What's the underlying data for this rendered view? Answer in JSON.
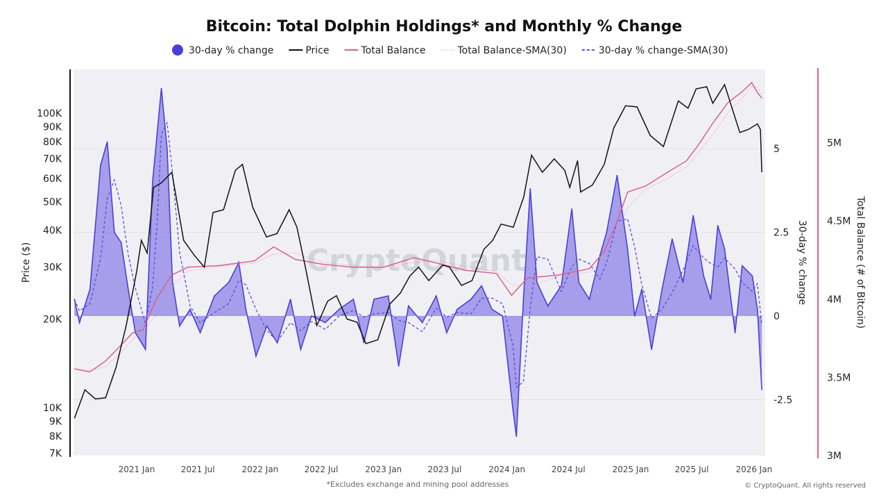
{
  "chart_data": {
    "type": "line",
    "title": "Bitcoin: Total Dolphin Holdings* and Monthly % Change",
    "footnote": "*Excludes exchange and mining pool addresses",
    "copyright": "© CryptoQuant. All rights reserved",
    "watermark": "CryptoQuant",
    "legend_position": "top-center",
    "legend": [
      {
        "label": "30-day % change",
        "color": "#4a3fd8",
        "style": "area"
      },
      {
        "label": "Price",
        "color": "#111111",
        "style": "solid"
      },
      {
        "label": "Total Balance",
        "color": "#d9608f",
        "style": "solid"
      },
      {
        "label": "Total Balance-SMA(30)",
        "color": "#e08aa8",
        "style": "dotted"
      },
      {
        "label": "30-day % change-SMA(30)",
        "color": "#5b4ce0",
        "style": "dashed"
      }
    ],
    "x_ticks": [
      "2021 Jan",
      "2021 Jul",
      "2022 Jan",
      "2022 Jul",
      "2023 Jan",
      "2023 Jul",
      "2024 Jan",
      "2024 Jul",
      "2025 Jan",
      "2025 Jul",
      "2026 Jan"
    ],
    "x_tick_dates": [
      "2021-01-01",
      "2021-07-01",
      "2022-01-01",
      "2022-07-01",
      "2023-01-01",
      "2023-07-01",
      "2024-01-01",
      "2024-07-01",
      "2025-01-01",
      "2025-07-01",
      "2026-01-01"
    ],
    "y_left": {
      "label": "Price ($)",
      "scale": "log",
      "range": [
        7000,
        180000
      ],
      "ticks": [
        {
          "v": 7000,
          "l": "7K"
        },
        {
          "v": 8000,
          "l": "8K"
        },
        {
          "v": 9000,
          "l": "9K"
        },
        {
          "v": 10000,
          "l": "10K"
        },
        {
          "v": 20000,
          "l": "20K"
        },
        {
          "v": 30000,
          "l": "30K"
        },
        {
          "v": 40000,
          "l": "40K"
        },
        {
          "v": 50000,
          "l": "50K"
        },
        {
          "v": 60000,
          "l": "60K"
        },
        {
          "v": 70000,
          "l": "70K"
        },
        {
          "v": 80000,
          "l": "80K"
        },
        {
          "v": 90000,
          "l": "90K"
        },
        {
          "v": 100000,
          "l": "100K"
        }
      ]
    },
    "y_right1": {
      "label": "30-day % change",
      "range": [
        -4.2,
        7.3
      ],
      "ticks": [
        {
          "v": -2.5,
          "l": "-2.5"
        },
        {
          "v": 0,
          "l": "0"
        },
        {
          "v": 2.5,
          "l": "2.5"
        },
        {
          "v": 5,
          "l": "5"
        }
      ]
    },
    "y_right2": {
      "label": "Total Balance (# of Bitcoin)",
      "range": [
        3000000,
        5450000
      ],
      "ticks": [
        {
          "v": 3000000,
          "l": "3M"
        },
        {
          "v": 3500000,
          "l": "3.5M"
        },
        {
          "v": 4000000,
          "l": "4M"
        },
        {
          "v": 4500000,
          "l": "4.5M"
        },
        {
          "v": 5000000,
          "l": "5M"
        }
      ]
    },
    "grid": true,
    "series": {
      "pct_change": [
        [
          "2020-07-01",
          0.5
        ],
        [
          "2020-07-16",
          -0.2
        ],
        [
          "2020-08-16",
          0.8
        ],
        [
          "2020-09-16",
          4.5
        ],
        [
          "2020-10-06",
          5.2
        ],
        [
          "2020-10-27",
          2.5
        ],
        [
          "2020-11-16",
          2.2
        ],
        [
          "2020-12-07",
          0.8
        ],
        [
          "2020-12-28",
          -0.5
        ],
        [
          "2021-01-27",
          -1.0
        ],
        [
          "2021-02-17",
          4.0
        ],
        [
          "2021-03-03",
          5.5
        ],
        [
          "2021-03-15",
          6.8
        ],
        [
          "2021-04-01",
          5.0
        ],
        [
          "2021-04-17",
          1.0
        ],
        [
          "2021-05-08",
          -0.3
        ],
        [
          "2021-06-08",
          0.2
        ],
        [
          "2021-07-08",
          -0.5
        ],
        [
          "2021-08-19",
          0.6
        ],
        [
          "2021-09-30",
          1.0
        ],
        [
          "2021-10-30",
          1.6
        ],
        [
          "2021-11-20",
          0.2
        ],
        [
          "2021-12-20",
          -1.2
        ],
        [
          "2022-01-21",
          -0.3
        ],
        [
          "2022-02-21",
          -0.8
        ],
        [
          "2022-04-01",
          0.5
        ],
        [
          "2022-05-01",
          -1.0
        ],
        [
          "2022-06-02",
          0.0
        ],
        [
          "2022-07-13",
          -0.2
        ],
        [
          "2022-08-23",
          0.2
        ],
        [
          "2022-10-04",
          0.5
        ],
        [
          "2022-11-04",
          -0.8
        ],
        [
          "2022-12-04",
          0.5
        ],
        [
          "2023-01-15",
          0.6
        ],
        [
          "2023-02-15",
          -1.5
        ],
        [
          "2023-03-16",
          0.3
        ],
        [
          "2023-04-26",
          -0.2
        ],
        [
          "2023-06-06",
          0.6
        ],
        [
          "2023-07-07",
          -0.5
        ],
        [
          "2023-08-07",
          0.2
        ],
        [
          "2023-09-17",
          0.5
        ],
        [
          "2023-10-18",
          0.9
        ],
        [
          "2023-11-18",
          0.2
        ],
        [
          "2023-12-19",
          0.0
        ],
        [
          "2024-01-19",
          -2.8
        ],
        [
          "2024-01-29",
          -3.6
        ],
        [
          "2024-02-19",
          0.5
        ],
        [
          "2024-03-10",
          3.8
        ],
        [
          "2024-03-30",
          1.0
        ],
        [
          "2024-05-01",
          0.3
        ],
        [
          "2024-06-10",
          0.9
        ],
        [
          "2024-07-11",
          3.2
        ],
        [
          "2024-08-01",
          1.0
        ],
        [
          "2024-09-01",
          0.5
        ],
        [
          "2024-10-02",
          1.8
        ],
        [
          "2024-10-22",
          2.5
        ],
        [
          "2024-11-22",
          4.2
        ],
        [
          "2024-12-23",
          2.0
        ],
        [
          "2025-01-13",
          0.0
        ],
        [
          "2025-02-03",
          0.8
        ],
        [
          "2025-03-04",
          -1.0
        ],
        [
          "2025-04-04",
          0.8
        ],
        [
          "2025-05-04",
          2.3
        ],
        [
          "2025-06-05",
          1.0
        ],
        [
          "2025-07-05",
          3.0
        ],
        [
          "2025-08-05",
          1.2
        ],
        [
          "2025-08-26",
          0.5
        ],
        [
          "2025-09-16",
          2.7
        ],
        [
          "2025-10-06",
          2.0
        ],
        [
          "2025-11-06",
          -0.5
        ],
        [
          "2025-11-27",
          1.5
        ],
        [
          "2025-12-27",
          1.2
        ],
        [
          "2026-01-11",
          0.2
        ],
        [
          "2026-01-24",
          -2.2
        ]
      ],
      "price": [
        [
          "2020-07-01",
          9200
        ],
        [
          "2020-08-01",
          11500
        ],
        [
          "2020-09-01",
          10700
        ],
        [
          "2020-10-01",
          10800
        ],
        [
          "2020-11-01",
          13700
        ],
        [
          "2020-12-01",
          19000
        ],
        [
          "2021-01-01",
          29000
        ],
        [
          "2021-01-15",
          37000
        ],
        [
          "2021-02-01",
          33500
        ],
        [
          "2021-02-20",
          56000
        ],
        [
          "2021-03-15",
          58000
        ],
        [
          "2021-04-15",
          63000
        ],
        [
          "2021-05-20",
          37000
        ],
        [
          "2021-06-20",
          33000
        ],
        [
          "2021-07-20",
          30000
        ],
        [
          "2021-08-15",
          46000
        ],
        [
          "2021-09-15",
          47000
        ],
        [
          "2021-10-20",
          64000
        ],
        [
          "2021-11-10",
          67000
        ],
        [
          "2021-12-10",
          48000
        ],
        [
          "2022-01-20",
          38000
        ],
        [
          "2022-02-20",
          39000
        ],
        [
          "2022-03-28",
          47000
        ],
        [
          "2022-04-20",
          41000
        ],
        [
          "2022-05-15",
          30000
        ],
        [
          "2022-06-18",
          19000
        ],
        [
          "2022-07-20",
          23000
        ],
        [
          "2022-08-15",
          24000
        ],
        [
          "2022-09-15",
          20000
        ],
        [
          "2022-10-15",
          19500
        ],
        [
          "2022-11-10",
          16500
        ],
        [
          "2022-12-15",
          17000
        ],
        [
          "2023-01-20",
          22500
        ],
        [
          "2023-02-20",
          24500
        ],
        [
          "2023-03-20",
          28000
        ],
        [
          "2023-04-15",
          30000
        ],
        [
          "2023-05-15",
          27000
        ],
        [
          "2023-06-25",
          30500
        ],
        [
          "2023-07-15",
          30000
        ],
        [
          "2023-08-20",
          26000
        ],
        [
          "2023-09-20",
          27000
        ],
        [
          "2023-10-25",
          34500
        ],
        [
          "2023-11-20",
          37000
        ],
        [
          "2023-12-15",
          42000
        ],
        [
          "2024-01-20",
          41000
        ],
        [
          "2024-02-20",
          52000
        ],
        [
          "2024-03-14",
          72000
        ],
        [
          "2024-04-15",
          63000
        ],
        [
          "2024-05-20",
          70000
        ],
        [
          "2024-06-20",
          64000
        ],
        [
          "2024-07-05",
          56000
        ],
        [
          "2024-07-28",
          69000
        ],
        [
          "2024-08-06",
          54000
        ],
        [
          "2024-09-10",
          57000
        ],
        [
          "2024-10-15",
          67000
        ],
        [
          "2024-11-12",
          89000
        ],
        [
          "2024-12-17",
          106000
        ],
        [
          "2025-01-20",
          105000
        ],
        [
          "2025-02-28",
          84000
        ],
        [
          "2025-04-08",
          77000
        ],
        [
          "2025-05-22",
          110000
        ],
        [
          "2025-06-20",
          104000
        ],
        [
          "2025-07-14",
          121000
        ],
        [
          "2025-08-14",
          123000
        ],
        [
          "2025-09-01",
          108000
        ],
        [
          "2025-10-06",
          125000
        ],
        [
          "2025-11-20",
          86000
        ],
        [
          "2025-12-15",
          88000
        ],
        [
          "2026-01-11",
          92000
        ],
        [
          "2026-01-20",
          88000
        ],
        [
          "2026-01-24",
          63000
        ]
      ],
      "total_balance": [
        [
          "2020-07-01",
          3550000
        ],
        [
          "2020-08-15",
          3530000
        ],
        [
          "2020-10-01",
          3600000
        ],
        [
          "2020-11-15",
          3700000
        ],
        [
          "2020-12-20",
          3780000
        ],
        [
          "2021-01-20",
          3800000
        ],
        [
          "2021-03-01",
          4000000
        ],
        [
          "2021-04-15",
          4150000
        ],
        [
          "2021-06-01",
          4200000
        ],
        [
          "2021-09-01",
          4210000
        ],
        [
          "2021-12-15",
          4240000
        ],
        [
          "2022-02-10",
          4330000
        ],
        [
          "2022-04-15",
          4250000
        ],
        [
          "2022-07-01",
          4220000
        ],
        [
          "2022-10-01",
          4200000
        ],
        [
          "2023-01-01",
          4200000
        ],
        [
          "2023-04-01",
          4260000
        ],
        [
          "2023-06-01",
          4230000
        ],
        [
          "2023-09-01",
          4180000
        ],
        [
          "2023-12-01",
          4160000
        ],
        [
          "2024-01-15",
          4020000
        ],
        [
          "2024-03-01",
          4130000
        ],
        [
          "2024-06-01",
          4150000
        ],
        [
          "2024-09-01",
          4190000
        ],
        [
          "2024-10-15",
          4300000
        ],
        [
          "2024-11-20",
          4480000
        ],
        [
          "2024-12-23",
          4680000
        ],
        [
          "2025-02-15",
          4720000
        ],
        [
          "2025-04-15",
          4800000
        ],
        [
          "2025-06-15",
          4880000
        ],
        [
          "2025-07-20",
          4980000
        ],
        [
          "2025-09-01",
          5120000
        ],
        [
          "2025-10-15",
          5250000
        ],
        [
          "2025-12-01",
          5330000
        ],
        [
          "2025-12-25",
          5380000
        ],
        [
          "2026-01-10",
          5320000
        ],
        [
          "2026-01-24",
          5280000
        ]
      ]
    }
  }
}
